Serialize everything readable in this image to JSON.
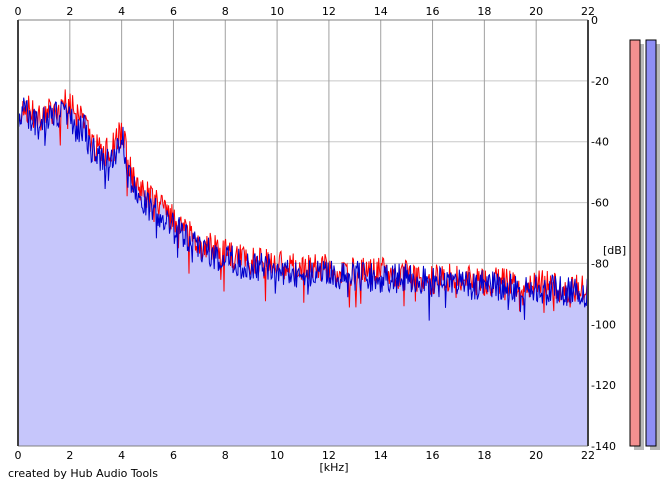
{
  "footer": {
    "credit": "created by Hub Audio Tools"
  },
  "chart_data": {
    "type": "line",
    "xlabel": "[kHz]",
    "ylabel": "[dB]",
    "xlim": [
      0,
      22
    ],
    "ylim": [
      -140,
      0
    ],
    "x_ticks": [
      0,
      2,
      4,
      6,
      8,
      10,
      12,
      14,
      16,
      18,
      20,
      22
    ],
    "y_ticks": [
      0,
      -20,
      -40,
      -60,
      -80,
      -100,
      -120,
      -140
    ],
    "grid": true,
    "colors": {
      "background": "#ffffff",
      "fill": "#c6c6fb",
      "series_left": "#ff0000",
      "series_right": "#0000cc",
      "grid_h": "#c8c8c8",
      "grid_v": "#a0a0a0",
      "meter_left": "#f39090",
      "meter_right": "#8e8ef5",
      "meter_shadow": "#b8b8b8"
    },
    "series": [
      {
        "color": "#ff0000",
        "x": [
          0,
          0.25,
          0.5,
          0.75,
          1,
          1.25,
          1.5,
          1.75,
          2,
          2.25,
          2.5,
          2.75,
          3,
          3.25,
          3.5,
          3.75,
          4,
          4.25,
          4.5,
          4.75,
          5,
          5.5,
          6,
          6.5,
          7,
          7.5,
          8,
          8.5,
          9,
          9.5,
          10,
          11,
          12,
          13,
          14,
          15,
          16,
          17,
          18,
          19,
          20,
          21,
          22
        ],
        "values": [
          -32,
          -28,
          -30,
          -33,
          -31,
          -29,
          -30,
          -28,
          -27,
          -33,
          -31,
          -38,
          -42,
          -43,
          -44,
          -41,
          -34,
          -48,
          -53,
          -55,
          -58,
          -62,
          -66,
          -70,
          -73,
          -75,
          -76,
          -78,
          -79,
          -80,
          -80,
          -81,
          -82,
          -83,
          -83,
          -84,
          -85,
          -85,
          -86,
          -86,
          -87,
          -88,
          -89
        ]
      },
      {
        "color": "#0000cc",
        "x": [
          0,
          0.25,
          0.5,
          0.75,
          1,
          1.25,
          1.5,
          1.75,
          2,
          2.25,
          2.5,
          2.75,
          3,
          3.25,
          3.5,
          3.75,
          4,
          4.25,
          4.5,
          4.75,
          5,
          5.5,
          6,
          6.5,
          7,
          7.5,
          8,
          8.5,
          9,
          9.5,
          10,
          11,
          12,
          13,
          14,
          15,
          16,
          17,
          18,
          19,
          20,
          21,
          22
        ],
        "values": [
          -34,
          -30,
          -32,
          -35,
          -33,
          -31,
          -32,
          -30,
          -31,
          -36,
          -34,
          -41,
          -44,
          -45,
          -46,
          -43,
          -37,
          -51,
          -56,
          -58,
          -61,
          -64,
          -68,
          -72,
          -75,
          -77,
          -78,
          -80,
          -81,
          -81,
          -82,
          -83,
          -84,
          -84,
          -85,
          -85,
          -86,
          -87,
          -87,
          -88,
          -88,
          -89,
          -90
        ]
      }
    ],
    "meters": [
      {
        "channel": "left",
        "level": 1.0
      },
      {
        "channel": "right",
        "level": 1.0
      }
    ]
  }
}
